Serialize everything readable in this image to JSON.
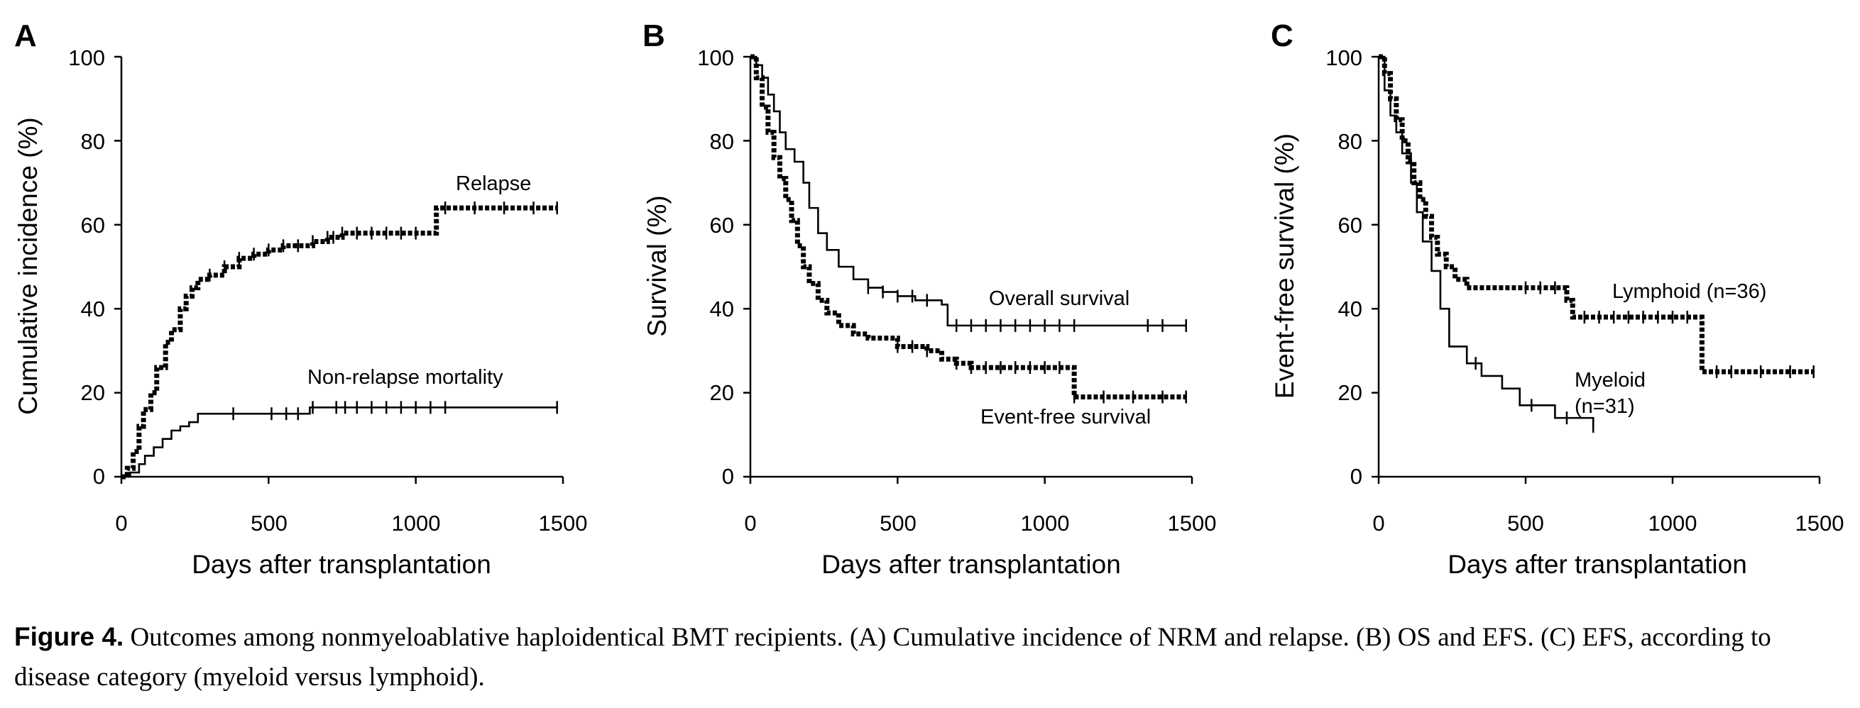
{
  "figure_caption": {
    "label": "Figure 4.",
    "text": "Outcomes among nonmyeloablative haploidentical BMT recipients. (A) Cumulative incidence of NRM and relapse. (B) OS and EFS. (C) EFS, according to disease category (myeloid versus lymphoid)."
  },
  "chart_data": [
    {
      "panel": "A",
      "type": "line",
      "step": true,
      "xlabel": "Days after transplantation",
      "ylabel": "Cumulative incidence (%)",
      "xlim": [
        0,
        1500
      ],
      "ylim": [
        0,
        100
      ],
      "xticks": [
        "0",
        "500",
        "1000",
        "1500"
      ],
      "yticks": [
        "0",
        "20",
        "40",
        "60",
        "80",
        "100"
      ],
      "grid": false,
      "series": [
        {
          "name": "Relapse",
          "style": "dashed-thick",
          "x": [
            0,
            20,
            40,
            60,
            75,
            100,
            120,
            150,
            170,
            200,
            220,
            240,
            260,
            300,
            350,
            400,
            450,
            500,
            550,
            600,
            650,
            700,
            750,
            800,
            850,
            900,
            950,
            1000,
            1050,
            1070,
            1100,
            1150,
            1200,
            1300,
            1400,
            1480
          ],
          "y": [
            0,
            2,
            6,
            12,
            16,
            20,
            26,
            32,
            35,
            40,
            43,
            45,
            47,
            48,
            50,
            52,
            53,
            54,
            55,
            55,
            56,
            57,
            58,
            58,
            58,
            58,
            58,
            58,
            58,
            64,
            64,
            64,
            64,
            64,
            64,
            64
          ],
          "censor_x": [
            300,
            350,
            400,
            450,
            500,
            550,
            600,
            650,
            700,
            720,
            750,
            800,
            850,
            900,
            950,
            1000,
            1100,
            1200,
            1300,
            1400,
            1480
          ]
        },
        {
          "name": "Non-relapse mortality",
          "style": "solid",
          "x": [
            0,
            30,
            60,
            80,
            110,
            140,
            170,
            200,
            230,
            260,
            640,
            1480
          ],
          "y": [
            0,
            1,
            3,
            5,
            7,
            9,
            11,
            12,
            13,
            15,
            16.5,
            16.5
          ],
          "censor_x": [
            380,
            510,
            560,
            600,
            650,
            730,
            760,
            800,
            850,
            900,
            950,
            1000,
            1050,
            1100,
            1480
          ]
        }
      ]
    },
    {
      "panel": "B",
      "type": "line",
      "step": true,
      "xlabel": "Days after transplantation",
      "ylabel": "Survival (%)",
      "xlim": [
        0,
        1500
      ],
      "ylim": [
        0,
        100
      ],
      "xticks": [
        "0",
        "500",
        "1000",
        "1500"
      ],
      "yticks": [
        "0",
        "20",
        "40",
        "60",
        "80",
        "100"
      ],
      "grid": false,
      "series": [
        {
          "name": "Overall survival",
          "style": "solid",
          "x": [
            0,
            20,
            40,
            60,
            80,
            100,
            120,
            150,
            180,
            200,
            230,
            260,
            300,
            350,
            400,
            450,
            500,
            560,
            650,
            670,
            1480
          ],
          "y": [
            100,
            98,
            95,
            91,
            87,
            82,
            78,
            75,
            70,
            64,
            58,
            54,
            50,
            47,
            45,
            44,
            43,
            42,
            41,
            36,
            36
          ],
          "censor_x": [
            400,
            450,
            500,
            550,
            600,
            700,
            750,
            800,
            850,
            900,
            950,
            1000,
            1050,
            1100,
            1350,
            1400,
            1480
          ]
        },
        {
          "name": "Event-free survival",
          "style": "dashed-thick",
          "x": [
            0,
            20,
            40,
            60,
            80,
            100,
            120,
            140,
            160,
            180,
            200,
            230,
            260,
            300,
            350,
            400,
            500,
            600,
            650,
            700,
            750,
            1080,
            1100,
            1480
          ],
          "y": [
            100,
            95,
            88,
            82,
            76,
            71,
            66,
            61,
            55,
            50,
            46,
            42,
            39,
            36,
            34,
            33,
            31,
            30,
            28,
            27,
            26,
            26,
            19,
            19
          ],
          "censor_x": [
            500,
            550,
            600,
            700,
            750,
            800,
            850,
            900,
            950,
            1000,
            1050,
            1100,
            1200,
            1300,
            1400,
            1480
          ]
        }
      ]
    },
    {
      "panel": "C",
      "type": "line",
      "step": true,
      "xlabel": "Days after transplantation",
      "ylabel": "Event-free survival (%)",
      "xlim": [
        0,
        1500
      ],
      "ylim": [
        0,
        100
      ],
      "xticks": [
        "0",
        "500",
        "1000",
        "1500"
      ],
      "yticks": [
        "0",
        "20",
        "40",
        "60",
        "80",
        "100"
      ],
      "grid": false,
      "series": [
        {
          "name": "Lymphoid (n=36)",
          "style": "dashed-thick",
          "x": [
            0,
            20,
            40,
            60,
            80,
            100,
            120,
            140,
            160,
            180,
            200,
            230,
            260,
            300,
            620,
            640,
            660,
            1080,
            1100,
            1480
          ],
          "y": [
            100,
            96,
            90,
            85,
            80,
            75,
            70,
            66,
            62,
            57,
            53,
            50,
            47,
            45,
            45,
            42,
            38,
            38,
            25,
            25
          ],
          "censor_x": [
            500,
            550,
            600,
            700,
            750,
            800,
            850,
            900,
            950,
            1000,
            1050,
            1150,
            1200,
            1300,
            1400,
            1480
          ]
        },
        {
          "name": "Myeloid (n=31)",
          "style": "solid",
          "x": [
            0,
            20,
            40,
            60,
            80,
            110,
            130,
            150,
            180,
            210,
            240,
            300,
            350,
            420,
            480,
            600,
            730
          ],
          "y": [
            100,
            92,
            86,
            82,
            77,
            70,
            63,
            56,
            49,
            40,
            31,
            27,
            24,
            21,
            17,
            14,
            12
          ],
          "censor_x": [
            330,
            520,
            640,
            730
          ]
        }
      ]
    }
  ],
  "panels": [
    {
      "id": "A",
      "label": "A",
      "ticks_x": [
        "0",
        "500",
        "1000",
        "1500"
      ],
      "ticks_y": [
        "0",
        "20",
        "40",
        "60",
        "80",
        "100"
      ],
      "xlabel": "Days after transplantation",
      "ylabel": "Cumulative incidence (%)",
      "annotations": [
        "Relapse",
        "Non-relapse mortality"
      ]
    },
    {
      "id": "B",
      "label": "B",
      "ticks_x": [
        "0",
        "500",
        "1000",
        "1500"
      ],
      "ticks_y": [
        "0",
        "20",
        "40",
        "60",
        "80",
        "100"
      ],
      "xlabel": "Days after transplantation",
      "ylabel": "Survival (%)",
      "annotations": [
        "Overall survival",
        "Event-free survival"
      ]
    },
    {
      "id": "C",
      "label": "C",
      "ticks_x": [
        "0",
        "500",
        "1000",
        "1500"
      ],
      "ticks_y": [
        "0",
        "20",
        "40",
        "60",
        "80",
        "100"
      ],
      "xlabel": "Days after transplantation",
      "ylabel": "Event-free survival (%)",
      "annotations": [
        "Lymphoid (n=36)",
        "Myeloid",
        "(n=31)"
      ]
    }
  ]
}
